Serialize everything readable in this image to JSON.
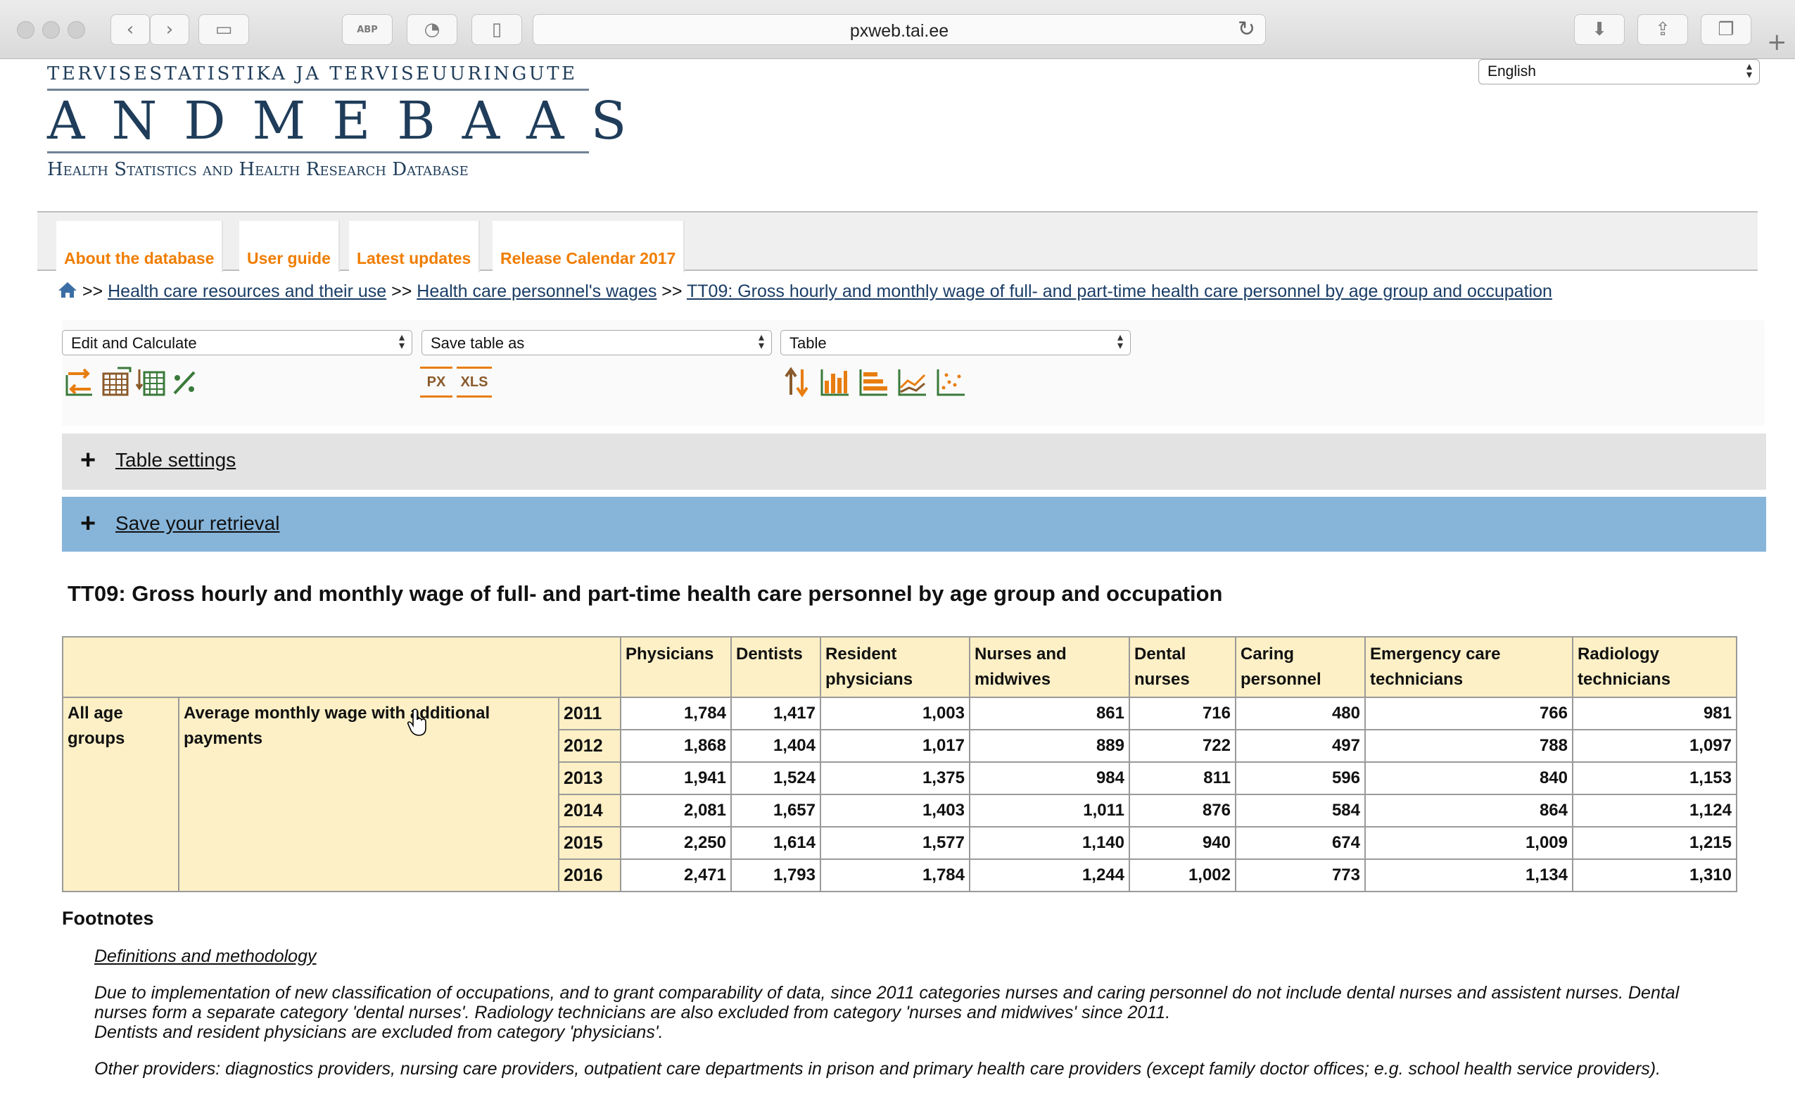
{
  "browser": {
    "url": "pxweb.tai.ee",
    "icons": [
      "back-icon",
      "forward-icon",
      "sidebar-icon",
      "adblock-icon",
      "extension-icon",
      "reader-icon",
      "reload-icon",
      "download-icon",
      "share-icon",
      "tabs-icon",
      "new-tab-icon"
    ],
    "abp_label": "ABP"
  },
  "logo": {
    "line1": "Tervisestatistika ja terviseuuringute",
    "line2": "ANDMEBAAS",
    "line3": "Health Statistics and Health Research Database"
  },
  "language": {
    "selected": "English"
  },
  "nav": {
    "tabs": [
      "About the database",
      "User guide",
      "Latest updates",
      "Release Calendar 2017"
    ]
  },
  "breadcrumb": {
    "sep": ">>",
    "items": [
      "Health care resources and their use",
      "Health care personnel's wages",
      "TT09: Gross hourly and monthly wage of full- and part-time health care personnel by age group and occupation"
    ]
  },
  "controls": {
    "edit_select": "Edit and Calculate",
    "save_select": "Save table as",
    "view_select": "Table",
    "px_label": "PX",
    "xls_label": "XLS"
  },
  "panels": {
    "table_settings": "Table settings",
    "save_retrieval": "Save your retrieval",
    "plus": "+"
  },
  "table": {
    "title": "TT09: Gross hourly and monthly wage of full- and part-time health care personnel by age group and occupation",
    "columns": [
      "Physicians",
      "Dentists",
      "Resident physicians",
      "Nurses and midwives",
      "Dental nurses",
      "Caring personnel",
      "Emergency care technicians",
      "Radiology technicians"
    ],
    "stub_age": "All age groups",
    "stub_measure": "Average monthly wage with additional payments",
    "rows": [
      {
        "year": "2011",
        "values": [
          "1,784",
          "1,417",
          "1,003",
          "861",
          "716",
          "480",
          "766",
          "981"
        ]
      },
      {
        "year": "2012",
        "values": [
          "1,868",
          "1,404",
          "1,017",
          "889",
          "722",
          "497",
          "788",
          "1,097"
        ]
      },
      {
        "year": "2013",
        "values": [
          "1,941",
          "1,524",
          "1,375",
          "984",
          "811",
          "596",
          "840",
          "1,153"
        ]
      },
      {
        "year": "2014",
        "values": [
          "2,081",
          "1,657",
          "1,403",
          "1,011",
          "876",
          "584",
          "864",
          "1,124"
        ]
      },
      {
        "year": "2015",
        "values": [
          "2,250",
          "1,614",
          "1,577",
          "1,140",
          "940",
          "674",
          "1,009",
          "1,215"
        ]
      },
      {
        "year": "2016",
        "values": [
          "2,471",
          "1,793",
          "1,784",
          "1,244",
          "1,002",
          "773",
          "1,134",
          "1,310"
        ]
      }
    ]
  },
  "footnotes": {
    "title": "Footnotes",
    "link": "Definitions and methodology",
    "note1": "Due to implementation of new classification of occupations, and to grant comparability of data, since 2011 categories nurses and caring personnel do not include dental nurses and assistent nurses. Dental nurses form a separate category 'dental nurses'. Radiology technicians are also excluded from category 'nurses and midwives' since 2011.",
    "note2": "Dentists and resident physicians are excluded from category 'physicians'.",
    "note3": "Other providers: diagnostics providers, nursing care providers, outpatient care departments in prison and primary health care providers (except family doctor offices; e.g. school health service providers)."
  },
  "colors": {
    "accent_orange": "#f07d00",
    "panel_blue": "#87b5da",
    "header_yellow": "#fdf0c6",
    "logo_navy": "#1f3d5a"
  }
}
